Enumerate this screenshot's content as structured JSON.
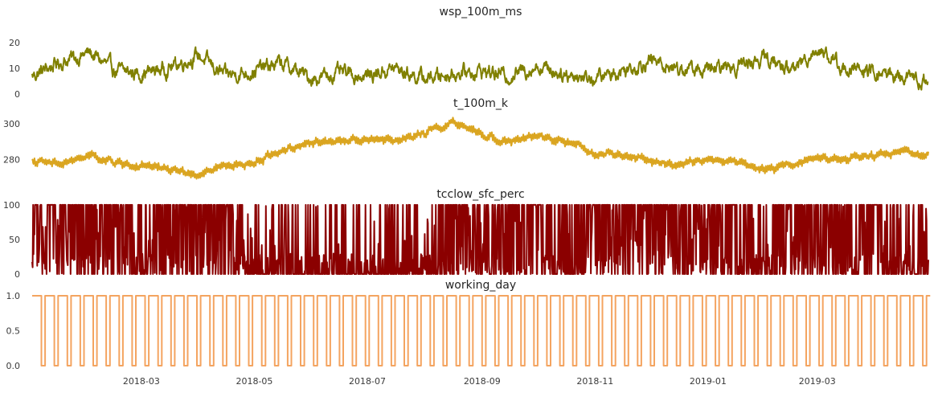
{
  "chart_data": [
    {
      "type": "line",
      "title": "wsp_100m_ms",
      "color": "#808000",
      "ylim": [
        0,
        24
      ],
      "yticks": [
        0,
        10,
        20
      ],
      "y_tick_labels": [
        "0",
        "10",
        "20"
      ],
      "x": [
        "2018-01-01",
        "2018-01-15",
        "2018-02-01",
        "2018-02-15",
        "2018-03-01",
        "2018-03-15",
        "2018-04-01",
        "2018-04-15",
        "2018-05-01",
        "2018-05-15",
        "2018-06-01",
        "2018-06-15",
        "2018-07-01",
        "2018-07-15",
        "2018-08-01",
        "2018-08-15",
        "2018-09-01",
        "2018-09-15",
        "2018-10-01",
        "2018-10-15",
        "2018-11-01",
        "2018-11-15",
        "2018-12-01",
        "2018-12-15",
        "2019-01-01",
        "2019-01-15",
        "2019-02-01",
        "2019-02-15",
        "2019-03-01",
        "2019-03-15",
        "2019-04-01",
        "2019-04-15",
        "2019-04-30"
      ],
      "values": [
        7,
        12,
        16,
        9,
        8,
        10,
        15,
        7,
        9,
        12,
        6,
        8,
        7,
        10,
        6,
        8,
        9,
        7,
        11,
        8,
        6,
        9,
        13,
        10,
        9,
        11,
        14,
        9,
        18,
        10,
        8,
        7,
        4
      ]
    },
    {
      "type": "line",
      "title": "t_100m_k",
      "color": "#DAA520",
      "ylim": [
        267,
        306
      ],
      "yticks": [
        280,
        300
      ],
      "y_tick_labels": [
        "280",
        "300"
      ],
      "x": [
        "2018-01-01",
        "2018-01-15",
        "2018-02-01",
        "2018-02-15",
        "2018-03-01",
        "2018-03-15",
        "2018-04-01",
        "2018-04-15",
        "2018-05-01",
        "2018-05-15",
        "2018-06-01",
        "2018-06-15",
        "2018-07-01",
        "2018-07-15",
        "2018-08-01",
        "2018-08-15",
        "2018-09-01",
        "2018-09-15",
        "2018-10-01",
        "2018-10-15",
        "2018-11-01",
        "2018-11-15",
        "2018-12-01",
        "2018-12-15",
        "2019-01-01",
        "2019-01-15",
        "2019-02-01",
        "2019-02-15",
        "2019-03-01",
        "2019-03-15",
        "2019-04-01",
        "2019-04-15",
        "2019-04-30"
      ],
      "values": [
        279,
        277,
        282,
        278,
        276,
        275,
        271,
        276,
        278,
        285,
        289,
        291,
        292,
        290,
        295,
        301,
        294,
        290,
        293,
        290,
        284,
        282,
        279,
        277,
        280,
        279,
        274,
        278,
        281,
        280,
        282,
        285,
        283
      ]
    },
    {
      "type": "line",
      "title": "tcclow_sfc_perc",
      "color": "#8B0000",
      "ylim": [
        0,
        101
      ],
      "yticks": [
        0,
        50,
        100
      ],
      "y_tick_labels": [
        "0",
        "50",
        "100"
      ],
      "x": [
        "2018-01-01",
        "2018-01-15",
        "2018-02-01",
        "2018-02-15",
        "2018-03-01",
        "2018-03-15",
        "2018-04-01",
        "2018-04-15",
        "2018-05-01",
        "2018-05-15",
        "2018-06-01",
        "2018-06-15",
        "2018-07-01",
        "2018-07-15",
        "2018-08-01",
        "2018-08-15",
        "2018-09-01",
        "2018-09-15",
        "2018-10-01",
        "2018-10-15",
        "2018-11-01",
        "2018-11-15",
        "2018-12-01",
        "2018-12-15",
        "2019-01-01",
        "2019-01-15",
        "2019-02-01",
        "2019-02-15",
        "2019-03-01",
        "2019-03-15",
        "2019-04-01",
        "2019-04-15",
        "2019-04-30"
      ],
      "values": [
        80,
        95,
        60,
        100,
        40,
        90,
        70,
        100,
        20,
        50,
        0,
        60,
        10,
        40,
        30,
        70,
        90,
        60,
        100,
        40,
        95,
        80,
        100,
        70,
        90,
        60,
        30,
        100,
        80,
        50,
        90,
        20,
        60
      ]
    },
    {
      "type": "line",
      "title": "working_day",
      "color": "#F4A460",
      "ylim": [
        0,
        1
      ],
      "yticks": [
        0,
        0.5,
        1
      ],
      "y_tick_labels": [
        "0.0",
        "0.5",
        "1.0"
      ],
      "x_start": "2018-01-01",
      "x_end": "2019-04-30",
      "weekly_pattern": "five 1s then two 0s per week",
      "values": [
        0,
        1
      ]
    }
  ],
  "x_axis": {
    "tick_labels": [
      "2018-03",
      "2018-05",
      "2018-07",
      "2018-09",
      "2018-11",
      "2019-01",
      "2019-03"
    ]
  }
}
